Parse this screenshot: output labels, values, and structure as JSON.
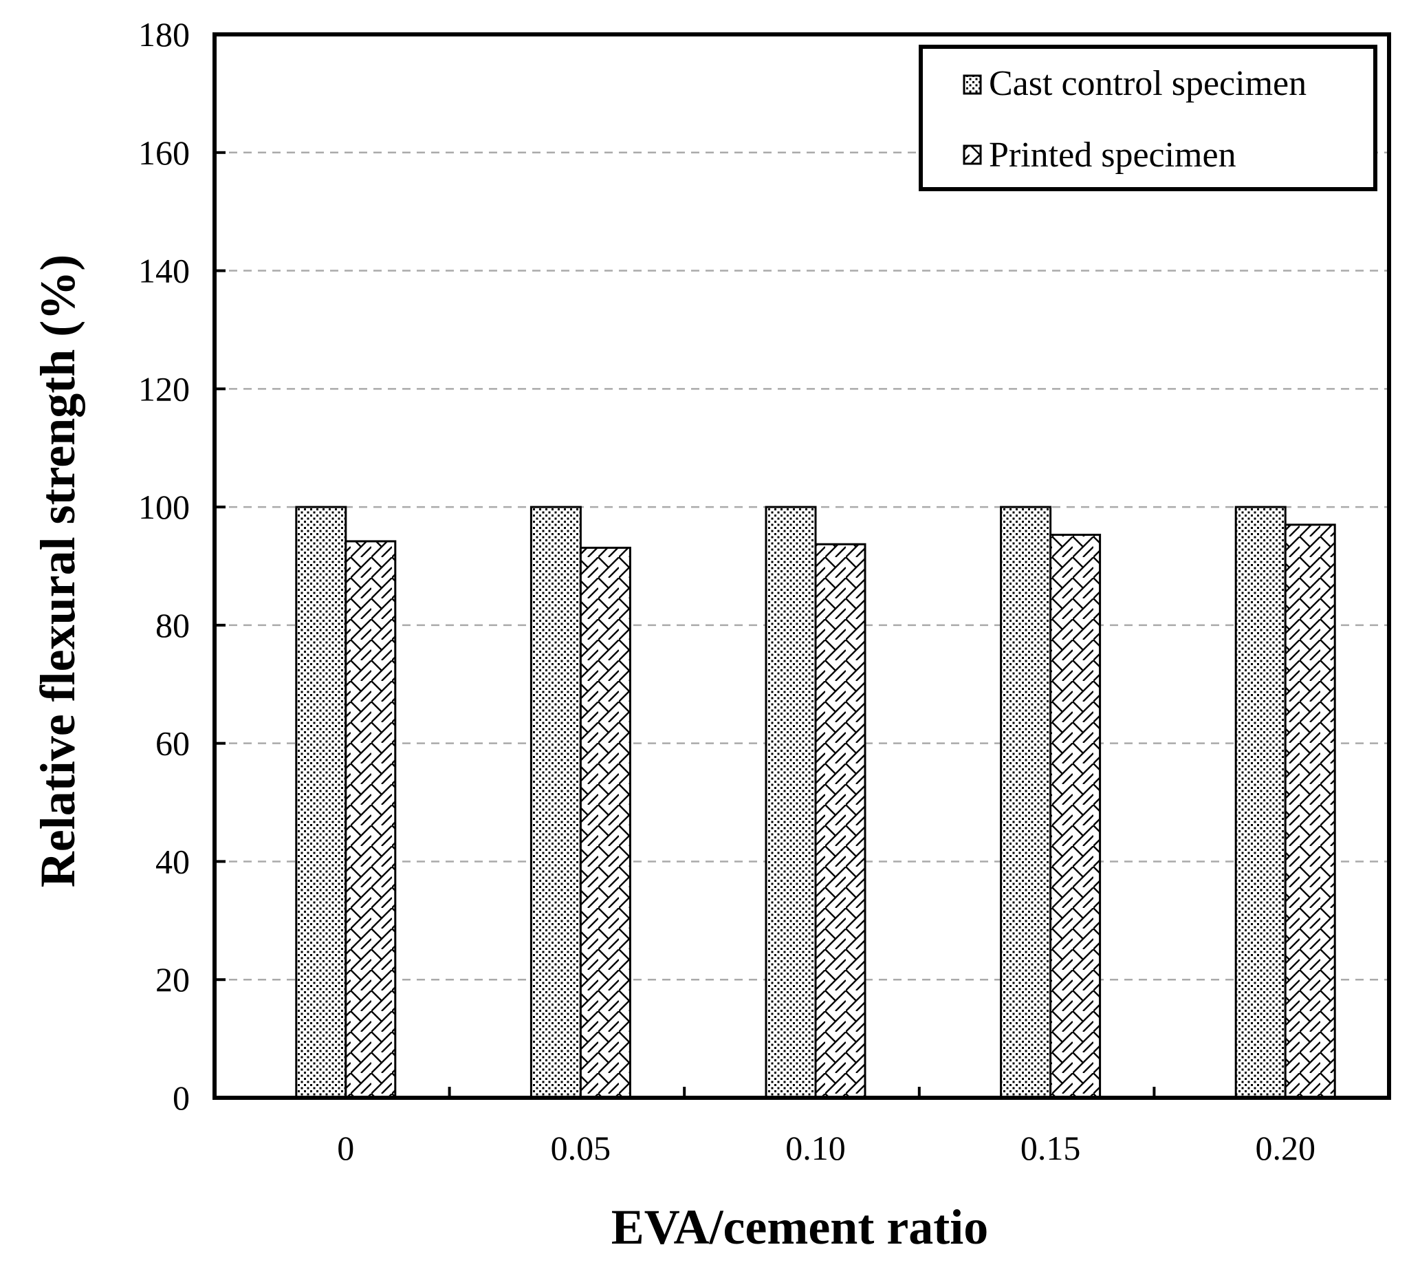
{
  "chart_data": {
    "type": "bar",
    "title": "",
    "xlabel": "EVA/cement ratio",
    "ylabel": "Relative flexural strength (%)",
    "categories": [
      "0",
      "0.05",
      "0.10",
      "0.15",
      "0.20"
    ],
    "ylim": [
      0,
      180
    ],
    "yticks": [
      0,
      20,
      40,
      60,
      80,
      100,
      120,
      140,
      160,
      180
    ],
    "grid": "horizontal dashed",
    "legend_position": "top-right",
    "series": [
      {
        "name": "Cast control specimen",
        "pattern": "dots",
        "values": [
          100,
          100,
          100,
          100,
          100
        ]
      },
      {
        "name": "Printed specimen",
        "pattern": "hatch",
        "values": [
          94.2,
          93.1,
          93.7,
          95.3,
          97.0
        ]
      }
    ]
  }
}
